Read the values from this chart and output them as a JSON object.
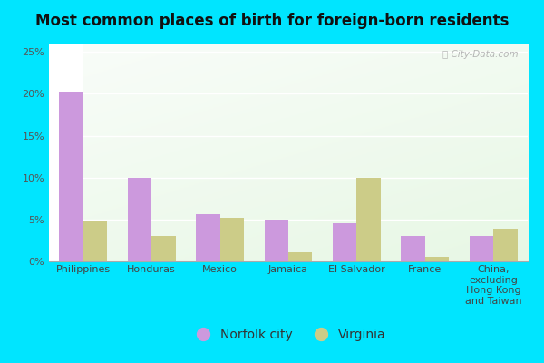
{
  "title": "Most common places of birth for foreign-born residents",
  "categories": [
    "Philippines",
    "Honduras",
    "Mexico",
    "Jamaica",
    "El Salvador",
    "France",
    "China,\nexcluding\nHong Kong\nand Taiwan"
  ],
  "norfolk_values": [
    20.3,
    10.0,
    5.6,
    5.0,
    4.6,
    3.0,
    3.0
  ],
  "virginia_values": [
    4.8,
    3.0,
    5.2,
    1.1,
    10.0,
    0.5,
    3.9
  ],
  "norfolk_color": "#cc99dd",
  "virginia_color": "#cccc88",
  "ylim": [
    0,
    26
  ],
  "yticks": [
    0,
    5,
    10,
    15,
    20,
    25
  ],
  "ytick_labels": [
    "0%",
    "5%",
    "10%",
    "15%",
    "20%",
    "25%"
  ],
  "legend_norfolk": "Norfolk city",
  "legend_virginia": "Virginia",
  "bg_outer": "#00e5ff",
  "watermark": "ⓘ City-Data.com",
  "bar_width": 0.35,
  "title_fontsize": 12,
  "tick_fontsize": 8,
  "legend_fontsize": 10
}
